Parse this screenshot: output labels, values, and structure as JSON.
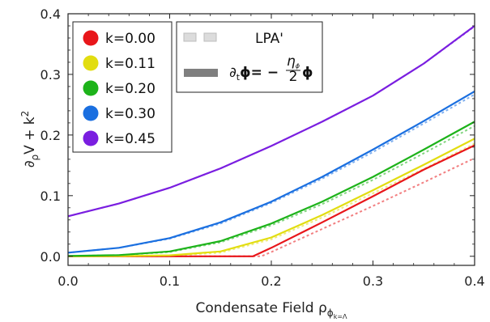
{
  "chart_data": {
    "type": "line",
    "xlabel": "Condensate Field ρ",
    "xlabel_sub": "ϕ",
    "xlabel_subsub": "k=Λ",
    "ylabel_prefix": "∂",
    "ylabel_sub": "ρ",
    "ylabel_main": "V + k",
    "ylabel_sup": "2",
    "xlim": [
      0,
      0.4
    ],
    "ylim": [
      -0.015,
      0.4
    ],
    "xticks": [
      "0.0",
      "0.1",
      "0.2",
      "0.3",
      "0.4"
    ],
    "yticks": [
      "0.0",
      "0.1",
      "0.2",
      "0.3",
      "0.4"
    ],
    "grid": false,
    "legend_series": {
      "placement": "top-left",
      "entries": [
        {
          "label": "k=0.00",
          "color": "#e8161a"
        },
        {
          "label": "k=0.11",
          "color": "#e2dd10"
        },
        {
          "label": "k=0.20",
          "color": "#1db31a"
        },
        {
          "label": "k=0.30",
          "color": "#1a6fe0"
        },
        {
          "label": "k=0.45",
          "color": "#7a1ee0"
        }
      ]
    },
    "legend_style": {
      "placement": "top-center",
      "entries": [
        {
          "label": "LPA'",
          "style": "dashed"
        },
        {
          "label_parts": [
            "∂",
            "t",
            "ϕ= −",
            "η",
            "ϕ",
            "2",
            "ϕ"
          ],
          "style": "solid"
        }
      ]
    },
    "series": [
      {
        "color": "#e8161a",
        "solid": [
          [
            0.0,
            0.0
          ],
          [
            0.05,
            0.0
          ],
          [
            0.1,
            0.0
          ],
          [
            0.15,
            0.0
          ],
          [
            0.182,
            0.0
          ],
          [
            0.2,
            0.014
          ],
          [
            0.25,
            0.056
          ],
          [
            0.3,
            0.099
          ],
          [
            0.35,
            0.143
          ],
          [
            0.4,
            0.183
          ]
        ],
        "dashed": [
          [
            0.0,
            0.0
          ],
          [
            0.1,
            0.0
          ],
          [
            0.15,
            0.0
          ],
          [
            0.19,
            0.0
          ],
          [
            0.2,
            0.007
          ],
          [
            0.25,
            0.045
          ],
          [
            0.3,
            0.083
          ],
          [
            0.35,
            0.122
          ],
          [
            0.4,
            0.162
          ]
        ]
      },
      {
        "color": "#e2dd10",
        "solid": [
          [
            0.0,
            0.0
          ],
          [
            0.05,
            0.0003
          ],
          [
            0.1,
            0.0015
          ],
          [
            0.15,
            0.008
          ],
          [
            0.2,
            0.031
          ],
          [
            0.25,
            0.068
          ],
          [
            0.3,
            0.109
          ],
          [
            0.35,
            0.151
          ],
          [
            0.4,
            0.194
          ]
        ],
        "dashed": [
          [
            0.0,
            0.0
          ],
          [
            0.05,
            0.0002
          ],
          [
            0.1,
            0.0012
          ],
          [
            0.15,
            0.006
          ],
          [
            0.2,
            0.028
          ],
          [
            0.25,
            0.064
          ],
          [
            0.3,
            0.104
          ],
          [
            0.35,
            0.144
          ],
          [
            0.4,
            0.186
          ]
        ]
      },
      {
        "color": "#1db31a",
        "solid": [
          [
            0.0,
            0.0005
          ],
          [
            0.05,
            0.002
          ],
          [
            0.1,
            0.008
          ],
          [
            0.15,
            0.025
          ],
          [
            0.2,
            0.054
          ],
          [
            0.25,
            0.09
          ],
          [
            0.3,
            0.131
          ],
          [
            0.35,
            0.176
          ],
          [
            0.4,
            0.222
          ]
        ],
        "dashed": [
          [
            0.0,
            0.0005
          ],
          [
            0.05,
            0.002
          ],
          [
            0.1,
            0.007
          ],
          [
            0.15,
            0.023
          ],
          [
            0.2,
            0.051
          ],
          [
            0.25,
            0.086
          ],
          [
            0.3,
            0.126
          ],
          [
            0.35,
            0.17
          ],
          [
            0.4,
            0.215
          ]
        ]
      },
      {
        "color": "#1a6fe0",
        "solid": [
          [
            0.0,
            0.006
          ],
          [
            0.05,
            0.014
          ],
          [
            0.1,
            0.03
          ],
          [
            0.15,
            0.056
          ],
          [
            0.2,
            0.09
          ],
          [
            0.25,
            0.131
          ],
          [
            0.3,
            0.176
          ],
          [
            0.35,
            0.223
          ],
          [
            0.4,
            0.272
          ]
        ],
        "dashed": [
          [
            0.0,
            0.006
          ],
          [
            0.05,
            0.014
          ],
          [
            0.1,
            0.029
          ],
          [
            0.15,
            0.054
          ],
          [
            0.2,
            0.088
          ],
          [
            0.25,
            0.128
          ],
          [
            0.3,
            0.172
          ],
          [
            0.35,
            0.219
          ],
          [
            0.4,
            0.267
          ]
        ]
      },
      {
        "color": "#7a1ee0",
        "solid": [
          [
            0.0,
            0.066
          ],
          [
            0.05,
            0.087
          ],
          [
            0.1,
            0.113
          ],
          [
            0.15,
            0.145
          ],
          [
            0.2,
            0.182
          ],
          [
            0.25,
            0.222
          ],
          [
            0.3,
            0.265
          ],
          [
            0.35,
            0.318
          ],
          [
            0.4,
            0.38
          ]
        ],
        "dashed": [
          [
            0.0,
            0.066
          ],
          [
            0.05,
            0.087
          ],
          [
            0.1,
            0.113
          ],
          [
            0.15,
            0.145
          ],
          [
            0.2,
            0.182
          ],
          [
            0.25,
            0.222
          ],
          [
            0.3,
            0.265
          ],
          [
            0.35,
            0.318
          ],
          [
            0.4,
            0.379
          ]
        ]
      }
    ]
  }
}
